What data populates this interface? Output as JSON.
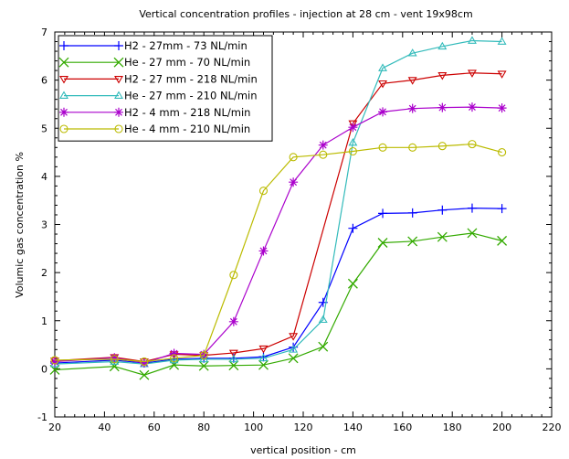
{
  "chart_data": {
    "type": "line",
    "title": "Vertical concentration profiles - injection at 28 cm - vent 19x98cm",
    "xlabel": "vertical position - cm",
    "ylabel": "Volumic gas concentration %",
    "xlim": [
      20,
      220
    ],
    "ylim": [
      -1,
      7
    ],
    "xticks": [
      20,
      40,
      60,
      80,
      100,
      120,
      140,
      160,
      180,
      200,
      220
    ],
    "yticks": [
      -1,
      0,
      1,
      2,
      3,
      4,
      5,
      6,
      7
    ],
    "grid": false,
    "legend_position": "top-left",
    "series": [
      {
        "name": "H2 - 27mm - 73 NL/min",
        "color": "#0000ff",
        "marker": "plus",
        "x": [
          20,
          44,
          56,
          68,
          80,
          92,
          104,
          116,
          128,
          140,
          152,
          164,
          176,
          188,
          200
        ],
        "y": [
          0.12,
          0.18,
          0.12,
          0.2,
          0.22,
          0.22,
          0.25,
          0.45,
          1.38,
          2.92,
          3.23,
          3.24,
          3.3,
          3.34,
          3.33
        ]
      },
      {
        "name": "He - 27 mm - 70 NL/min",
        "color": "#33aa00",
        "marker": "x",
        "x": [
          20,
          44,
          56,
          68,
          80,
          92,
          104,
          116,
          128,
          140,
          152,
          164,
          176,
          188,
          200
        ],
        "y": [
          -0.02,
          0.05,
          -0.13,
          0.08,
          0.06,
          0.07,
          0.08,
          0.22,
          0.46,
          1.77,
          2.62,
          2.65,
          2.74,
          2.82,
          2.66
        ]
      },
      {
        "name": "H2 - 27 mm - 218 NL/min",
        "color": "#cc0000",
        "marker": "triangle-down",
        "x": [
          20,
          44,
          56,
          68,
          80,
          92,
          104,
          116,
          140,
          152,
          164,
          176,
          188,
          200
        ],
        "y": [
          0.17,
          0.24,
          0.15,
          0.3,
          0.28,
          0.33,
          0.42,
          0.68,
          5.1,
          5.93,
          6.0,
          6.1,
          6.15,
          6.13
        ]
      },
      {
        "name": "He - 27 mm - 210 NL/min",
        "color": "#33bbbb",
        "marker": "triangle-up",
        "x": [
          20,
          44,
          56,
          68,
          80,
          92,
          104,
          116,
          128,
          140,
          152,
          164,
          176,
          188,
          200
        ],
        "y": [
          0.1,
          0.15,
          0.1,
          0.18,
          0.2,
          0.2,
          0.22,
          0.4,
          1.02,
          4.7,
          6.25,
          6.56,
          6.7,
          6.82,
          6.8
        ]
      },
      {
        "name": "H2 - 4 mm - 218 NL/min",
        "color": "#aa00cc",
        "marker": "star",
        "x": [
          20,
          44,
          56,
          68,
          80,
          92,
          104,
          116,
          128,
          140,
          152,
          164,
          176,
          188,
          200
        ],
        "y": [
          0.15,
          0.23,
          0.12,
          0.32,
          0.3,
          0.98,
          2.45,
          3.88,
          4.65,
          5.02,
          5.34,
          5.41,
          5.43,
          5.44,
          5.42
        ]
      },
      {
        "name": "He - 4 mm - 210 NL/min",
        "color": "#bbbb00",
        "marker": "circle",
        "x": [
          20,
          44,
          56,
          68,
          80,
          92,
          104,
          116,
          128,
          140,
          152,
          164,
          176,
          188,
          200
        ],
        "y": [
          0.18,
          0.2,
          0.15,
          0.22,
          0.28,
          1.95,
          3.7,
          4.4,
          4.45,
          4.52,
          4.6,
          4.6,
          4.63,
          4.67,
          4.5
        ]
      }
    ]
  }
}
